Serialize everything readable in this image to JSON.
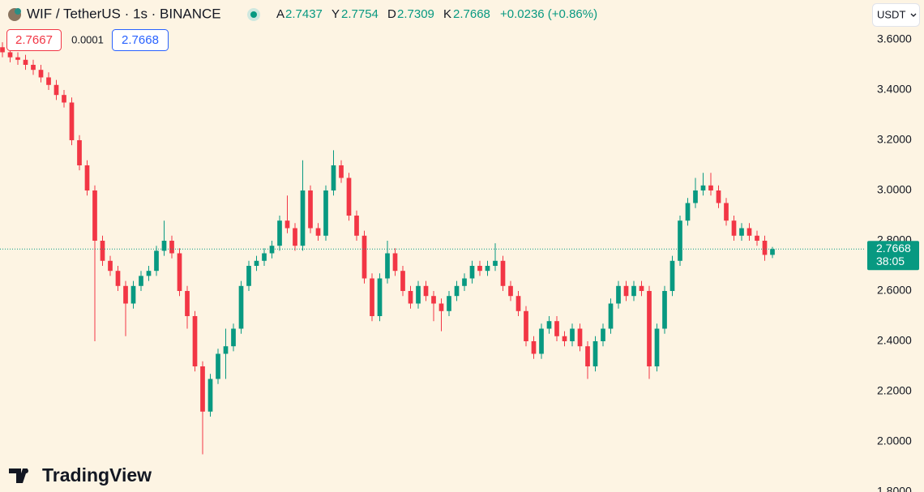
{
  "chart_data": {
    "type": "candlestick",
    "title": "WIF / TetherUS · 1s · BINANCE",
    "ohlc_labels": [
      "A",
      "Y",
      "D",
      "K"
    ],
    "change": "+0.0236 (+0.86%)",
    "bid": "2.7667",
    "spread": "0.0001",
    "ask": "2.7668",
    "currency": "USDT",
    "countdown": "38:05",
    "brand": "TradingView",
    "up_color": "#089981",
    "down_color": "#f23645",
    "ylim": [
      1.8,
      3.758
    ],
    "yticks": [
      {
        "value": 1.8,
        "label": "1.8000"
      },
      {
        "value": 2.0,
        "label": "2.0000"
      },
      {
        "value": 2.2,
        "label": "2.2000"
      },
      {
        "value": 2.4,
        "label": "2.4000"
      },
      {
        "value": 2.6,
        "label": "2.6000"
      },
      {
        "value": 2.8,
        "label": "2.8000"
      },
      {
        "value": 3.0,
        "label": "3.0000"
      },
      {
        "value": 3.2,
        "label": "3.2000"
      },
      {
        "value": 3.4,
        "label": "3.4000"
      },
      {
        "value": 3.6,
        "label": "3.6000"
      }
    ],
    "open": [
      3.57,
      3.55,
      3.53,
      3.52,
      3.5,
      3.48,
      3.45,
      3.42,
      3.38,
      3.35,
      3.2,
      3.1,
      3.0,
      2.8,
      2.72,
      2.68,
      2.62,
      2.55,
      2.62,
      2.66,
      2.68,
      2.76,
      2.8,
      2.75,
      2.6,
      2.5,
      2.3,
      2.12,
      2.25,
      2.35,
      2.38,
      2.45,
      2.62,
      2.7,
      2.72,
      2.75,
      2.78,
      2.88,
      2.85,
      2.78,
      3.0,
      2.85,
      2.82,
      3.0,
      3.1,
      3.05,
      2.9,
      2.82,
      2.65,
      2.5,
      2.65,
      2.75,
      2.68,
      2.6,
      2.55,
      2.62,
      2.58,
      2.55,
      2.52,
      2.58,
      2.62,
      2.65,
      2.7,
      2.68,
      2.7,
      2.72,
      2.62,
      2.58,
      2.52,
      2.4,
      2.35,
      2.45,
      2.48,
      2.42,
      2.4,
      2.45,
      2.38,
      2.3,
      2.4,
      2.45,
      2.55,
      2.62,
      2.58,
      2.62,
      2.6,
      2.3,
      2.45,
      2.6,
      2.72,
      2.88,
      2.95,
      3.0,
      3.02,
      3.0,
      2.95,
      2.88,
      2.82,
      2.85,
      2.82,
      2.8,
      2.7437
    ],
    "high": [
      3.59,
      3.57,
      3.55,
      3.54,
      3.52,
      3.5,
      3.47,
      3.44,
      3.4,
      3.37,
      3.22,
      3.12,
      3.02,
      2.82,
      2.74,
      2.7,
      2.64,
      2.64,
      2.68,
      2.7,
      2.78,
      2.88,
      2.82,
      2.77,
      2.62,
      2.52,
      2.32,
      2.27,
      2.37,
      2.45,
      2.47,
      2.64,
      2.72,
      2.74,
      2.77,
      2.8,
      2.9,
      2.98,
      2.87,
      3.12,
      3.02,
      2.87,
      3.02,
      3.16,
      3.12,
      3.07,
      2.92,
      2.84,
      2.67,
      2.67,
      2.8,
      2.77,
      2.7,
      2.62,
      2.64,
      2.64,
      2.6,
      2.57,
      2.6,
      2.64,
      2.67,
      2.72,
      2.72,
      2.72,
      2.79,
      2.74,
      2.64,
      2.6,
      2.54,
      2.42,
      2.47,
      2.5,
      2.5,
      2.44,
      2.47,
      2.47,
      2.4,
      2.42,
      2.47,
      2.57,
      2.64,
      2.64,
      2.64,
      2.64,
      2.62,
      2.47,
      2.62,
      2.74,
      2.9,
      2.97,
      3.05,
      3.07,
      3.07,
      3.02,
      2.97,
      2.9,
      2.87,
      2.87,
      2.84,
      2.82,
      2.7754
    ],
    "low": [
      3.53,
      3.51,
      3.5,
      3.48,
      3.46,
      3.43,
      3.4,
      3.36,
      3.33,
      3.18,
      3.08,
      2.98,
      2.4,
      2.7,
      2.66,
      2.6,
      2.42,
      2.53,
      2.6,
      2.64,
      2.66,
      2.74,
      2.73,
      2.58,
      2.45,
      2.28,
      1.95,
      2.1,
      2.23,
      2.25,
      2.36,
      2.43,
      2.6,
      2.68,
      2.7,
      2.73,
      2.76,
      2.83,
      2.76,
      2.76,
      2.83,
      2.8,
      2.8,
      2.98,
      3.03,
      2.88,
      2.8,
      2.63,
      2.48,
      2.48,
      2.63,
      2.66,
      2.58,
      2.53,
      2.53,
      2.56,
      2.48,
      2.44,
      2.5,
      2.56,
      2.6,
      2.63,
      2.66,
      2.66,
      2.68,
      2.6,
      2.56,
      2.5,
      2.38,
      2.33,
      2.33,
      2.43,
      2.4,
      2.38,
      2.38,
      2.36,
      2.25,
      2.28,
      2.38,
      2.43,
      2.53,
      2.56,
      2.56,
      2.58,
      2.25,
      2.28,
      2.43,
      2.58,
      2.7,
      2.86,
      2.93,
      2.98,
      2.98,
      2.93,
      2.86,
      2.8,
      2.8,
      2.8,
      2.78,
      2.72,
      2.7309
    ],
    "close": [
      3.55,
      3.53,
      3.52,
      3.5,
      3.48,
      3.45,
      3.42,
      3.38,
      3.35,
      3.2,
      3.1,
      3.0,
      2.8,
      2.72,
      2.68,
      2.62,
      2.55,
      2.62,
      2.66,
      2.68,
      2.76,
      2.8,
      2.75,
      2.6,
      2.5,
      2.3,
      2.12,
      2.25,
      2.35,
      2.38,
      2.45,
      2.62,
      2.7,
      2.72,
      2.75,
      2.78,
      2.88,
      2.85,
      2.78,
      3.0,
      2.85,
      2.82,
      3.0,
      3.1,
      3.05,
      2.9,
      2.82,
      2.65,
      2.5,
      2.65,
      2.75,
      2.68,
      2.6,
      2.55,
      2.62,
      2.58,
      2.55,
      2.52,
      2.58,
      2.62,
      2.65,
      2.7,
      2.68,
      2.7,
      2.72,
      2.62,
      2.58,
      2.52,
      2.4,
      2.35,
      2.45,
      2.48,
      2.42,
      2.4,
      2.45,
      2.38,
      2.3,
      2.4,
      2.45,
      2.55,
      2.62,
      2.58,
      2.62,
      2.6,
      2.3,
      2.45,
      2.6,
      2.72,
      2.88,
      2.95,
      3.0,
      3.02,
      3.0,
      2.95,
      2.88,
      2.82,
      2.85,
      2.82,
      2.8,
      2.7437,
      2.7668
    ]
  }
}
